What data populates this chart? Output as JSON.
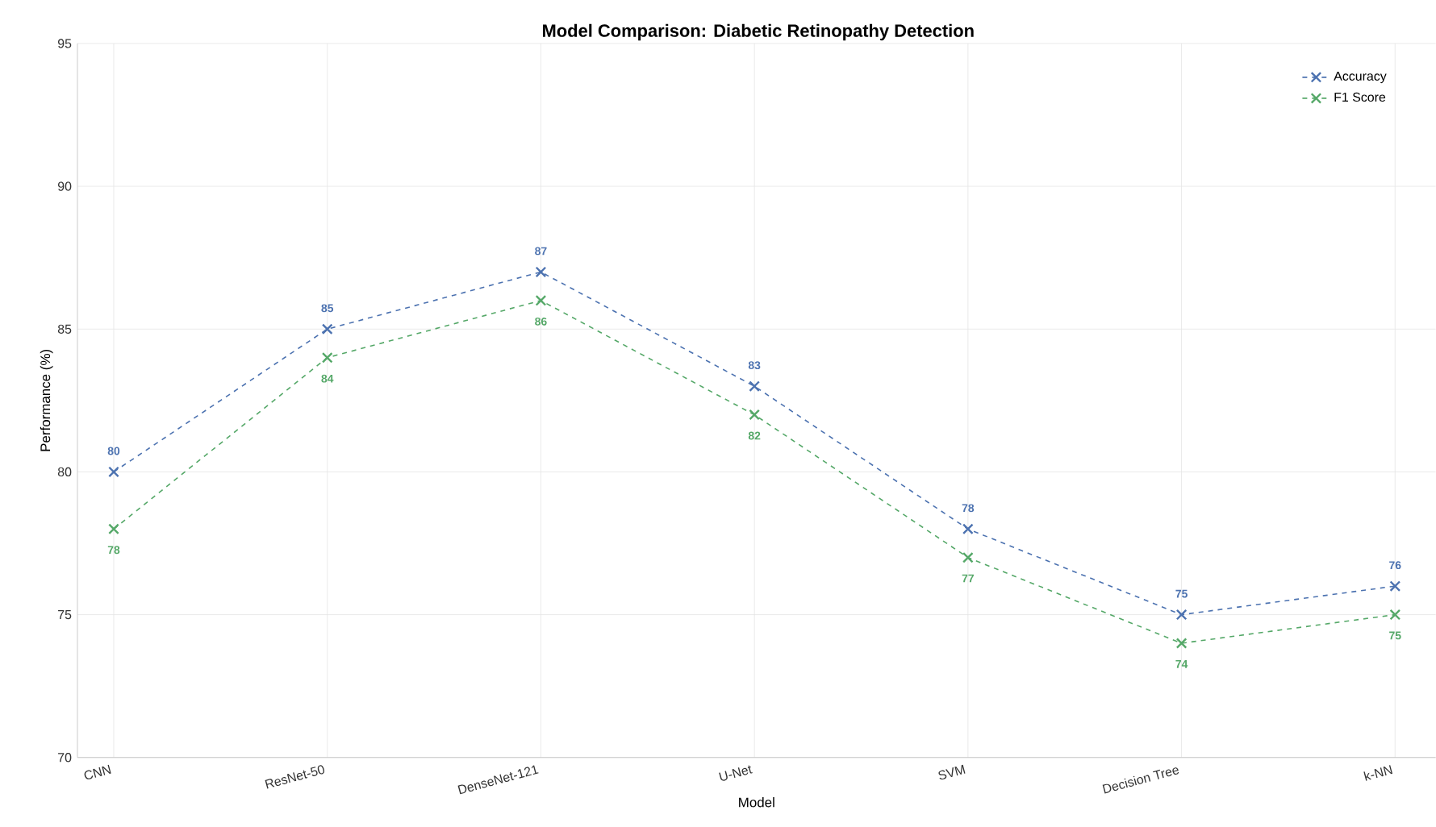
{
  "chart_data": {
    "type": "line",
    "title": "Model Comparison: Diabetic Retinopathy Detection",
    "xlabel": "Model",
    "ylabel": "Performance (%)",
    "categories": [
      "CNN",
      "ResNet-50",
      "DenseNet-121",
      "U-Net",
      "SVM",
      "Decision Tree",
      "k-NN"
    ],
    "series": [
      {
        "name": "Accuracy",
        "color": "#4c72b0",
        "values": [
          80,
          85,
          87,
          83,
          78,
          75,
          76
        ]
      },
      {
        "name": "F1 Score",
        "color": "#55a868",
        "values": [
          78,
          84,
          86,
          82,
          77,
          74,
          75
        ]
      }
    ],
    "ylim": [
      70,
      95
    ],
    "yticks": [
      70,
      75,
      80,
      85,
      90,
      95
    ],
    "grid": true,
    "legend": "top right",
    "marker": "cross",
    "line_style": "dashed",
    "data_labels": true
  }
}
